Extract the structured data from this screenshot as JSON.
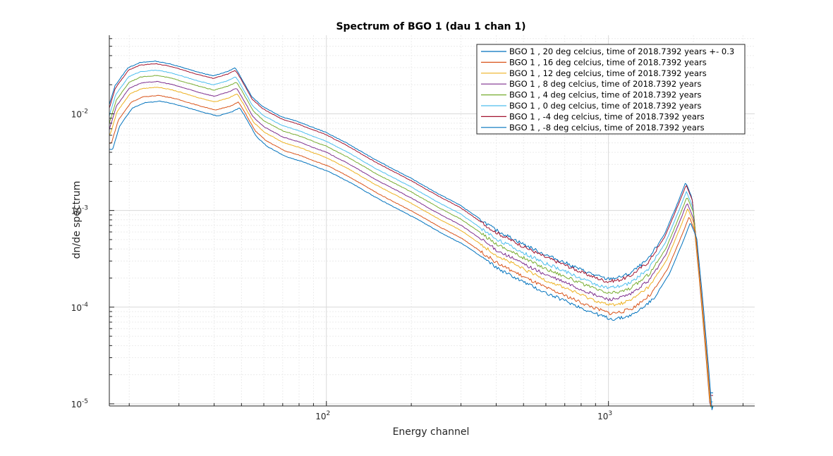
{
  "chart_data": {
    "type": "line",
    "title": "Spectrum of BGO 1 (dau 1 chan 1)",
    "xlabel": "Energy channel",
    "ylabel": "dn/de spectrum",
    "xscale": "log",
    "yscale": "log",
    "xlim": [
      17,
      3300
    ],
    "ylim": [
      9.5e-06,
      0.065
    ],
    "x_ticks": [
      {
        "value": 100,
        "base": "10",
        "exp": "2"
      },
      {
        "value": 1000,
        "base": "10",
        "exp": "3"
      }
    ],
    "y_ticks": [
      {
        "value": 0.01,
        "base": "10",
        "exp": "-2"
      },
      {
        "value": 0.001,
        "base": "10",
        "exp": "-3"
      },
      {
        "value": 0.0001,
        "base": "10",
        "exp": "-4"
      },
      {
        "value": 1e-05,
        "base": "10",
        "exp": "-5"
      }
    ],
    "grid": true,
    "legend_position": "top-right",
    "shape": {
      "x": [
        17,
        18,
        20,
        22,
        25,
        28,
        30,
        35,
        40,
        45,
        48,
        50,
        55,
        60,
        70,
        80,
        90,
        100,
        120,
        150,
        200,
        250,
        300,
        400,
        500,
        600,
        700,
        800,
        900,
        1000,
        1100,
        1200,
        1400,
        1600,
        1800,
        1900,
        2000,
        2100,
        2200,
        2300
      ],
      "y": [
        0.0043,
        0.0075,
        0.0115,
        0.013,
        0.0135,
        0.0127,
        0.012,
        0.0105,
        0.0095,
        0.0105,
        0.0115,
        0.0095,
        0.0058,
        0.0046,
        0.0036,
        0.0032,
        0.0028,
        0.0025,
        0.0019,
        0.0013,
        0.00084,
        0.00058,
        0.00044,
        0.000245,
        0.000175,
        0.000135,
        0.000113,
        9.5e-05,
        8.3e-05,
        7.5e-05,
        7.8e-05,
        8.5e-05,
        0.00012,
        0.00022,
        0.0005,
        0.00075,
        0.00052,
        0.00012,
        2.5e-05,
        5e-06
      ]
    },
    "series": [
      {
        "name": "BGO 1 , 20 deg celcius, time of 2018.7392 years +- 0.3",
        "color": "#0072BD",
        "scale": 2.6,
        "peak_x": 1780
      },
      {
        "name": "BGO 1 , 16 deg celcius, time of 2018.7392 years",
        "color": "#D95319",
        "scale": 1.15,
        "peak_x": 1830
      },
      {
        "name": "BGO 1 , 12 deg celcius, time of 2018.7392 years",
        "color": "#EDB120",
        "scale": 1.4,
        "peak_x": 1810
      },
      {
        "name": "BGO 1 , 8 deg celcius, time of 2018.7392 years",
        "color": "#7E2F8E",
        "scale": 1.6,
        "peak_x": 1800
      },
      {
        "name": "BGO 1 , 4 deg celcius, time of 2018.7392 years",
        "color": "#77AC30",
        "scale": 1.85,
        "peak_x": 1800
      },
      {
        "name": "BGO 1 , 0 deg celcius, time of 2018.7392 years",
        "color": "#4DBEEE",
        "scale": 2.1,
        "peak_x": 1790
      },
      {
        "name": "BGO 1 , -4 deg celcius, time of 2018.7392 years",
        "color": "#A2142F",
        "scale": 2.45,
        "peak_x": 1785
      },
      {
        "name": "BGO 1 , -8 deg celcius, time of 2018.7392 years",
        "color": "#0072BD",
        "scale": 1.0,
        "peak_x": 1850
      }
    ]
  }
}
